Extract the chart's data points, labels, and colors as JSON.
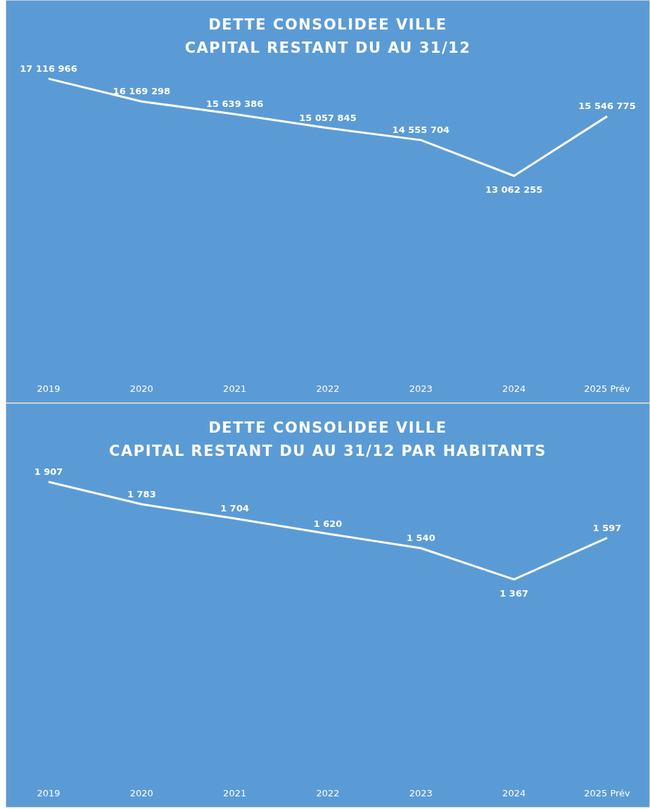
{
  "chart_data": [
    {
      "type": "line",
      "title": "DETTE CONSOLIDEE VILLE\nCAPITAL RESTANT DU AU 31/12",
      "categories": [
        "2019",
        "2020",
        "2021",
        "2022",
        "2023",
        "2024",
        "2025 Prév"
      ],
      "series": [
        {
          "color": "#ffffff",
          "values": [
            17116966,
            16169298,
            15639386,
            15057845,
            14555704,
            13062255,
            15546775
          ]
        }
      ],
      "data_labels": true,
      "grid": false,
      "legend": false,
      "marker": "none",
      "tick_labels": "x"
    },
    {
      "type": "line",
      "title": "DETTE CONSOLIDEE VILLE\nCAPITAL RESTANT DU AU 31/12 PAR HABITANTS",
      "categories": [
        "2019",
        "2020",
        "2021",
        "2022",
        "2023",
        "2024",
        "2025 Prév"
      ],
      "series": [
        {
          "color": "#ffffff",
          "values": [
            1907,
            1783,
            1704,
            1620,
            1540,
            1367,
            1597
          ]
        }
      ],
      "data_labels": true,
      "grid": false,
      "legend": false,
      "marker": "none",
      "tick_labels": "x"
    }
  ]
}
